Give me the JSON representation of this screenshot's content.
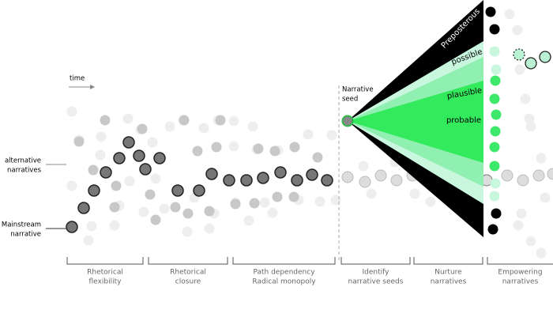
{
  "annotations": {
    "time": "time",
    "alternative": [
      "alternative",
      "narratives"
    ],
    "mainstream": [
      "Mainstream",
      "narrative"
    ],
    "seed": [
      "Narrative",
      "seed"
    ]
  },
  "cone": {
    "labels": [
      "Preposterous",
      "possible",
      "plausible",
      "probable"
    ]
  },
  "phases": [
    [
      "Rhetorical",
      "flexibility"
    ],
    [
      "Rhetorical",
      "closure"
    ],
    [
      "Path dependency",
      "Radical monopoly"
    ],
    [
      "Identify",
      "narrative seeds"
    ],
    [
      "Nurture",
      "narratives"
    ],
    [
      "Empowering",
      "narratives"
    ]
  ]
}
